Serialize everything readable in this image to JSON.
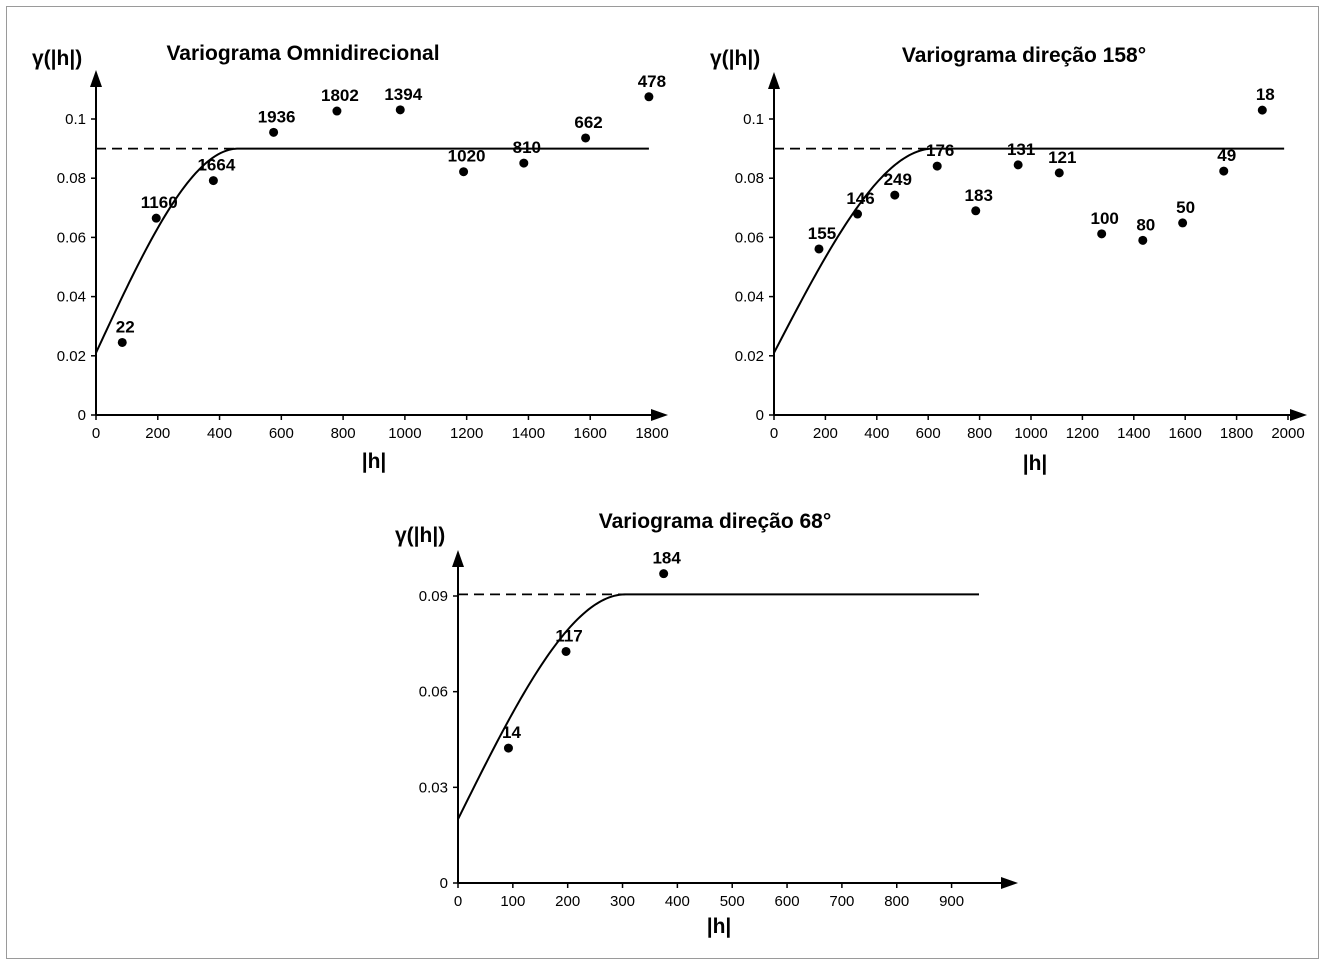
{
  "chart_data": [
    {
      "type": "scatter",
      "title": "Variograma Omnidirecional",
      "ylabel": "γ(|h|)",
      "xlabel": "|h|",
      "xlim": [
        0,
        1800
      ],
      "ylim": [
        0,
        0.1
      ],
      "xticks": [
        0,
        200,
        400,
        600,
        800,
        1000,
        1200,
        1400,
        1600,
        1800
      ],
      "xtick_labels": [
        "0",
        "200",
        "400",
        "600",
        "800",
        "1000",
        "1200",
        "1400",
        "1600",
        "1800"
      ],
      "yticks": [
        0,
        0.02,
        0.04,
        0.06,
        0.08,
        0.1
      ],
      "ytick_labels": [
        "0",
        "0.02",
        "0.04",
        "0.06",
        "0.08",
        "0.1"
      ],
      "points": [
        {
          "x": 85,
          "y": 0.0245,
          "label": "22"
        },
        {
          "x": 195,
          "y": 0.0665,
          "label": "1160"
        },
        {
          "x": 380,
          "y": 0.0792,
          "label": "1664"
        },
        {
          "x": 575,
          "y": 0.0955,
          "label": "1936"
        },
        {
          "x": 780,
          "y": 0.1027,
          "label": "1802"
        },
        {
          "x": 985,
          "y": 0.1031,
          "label": "1394"
        },
        {
          "x": 1190,
          "y": 0.0822,
          "label": "1020"
        },
        {
          "x": 1385,
          "y": 0.0851,
          "label": "810"
        },
        {
          "x": 1585,
          "y": 0.0936,
          "label": "662"
        },
        {
          "x": 1790,
          "y": 0.1075,
          "label": "478"
        }
      ],
      "model": {
        "type": "spherical",
        "nugget": 0.021,
        "sill": 0.09,
        "range": 460,
        "xmax": 1790
      },
      "sill_line_end": 460
    },
    {
      "type": "scatter",
      "title": "Variograma direção 158°",
      "ylabel": "γ(|h|)",
      "xlabel": "|h|",
      "xlim": [
        0,
        2000
      ],
      "ylim": [
        0,
        0.1
      ],
      "xticks": [
        0,
        200,
        400,
        600,
        800,
        1000,
        1200,
        1400,
        1600,
        1800,
        2000
      ],
      "xtick_labels": [
        "0",
        "200",
        "400",
        "600",
        "800",
        "1000",
        "1200",
        "1400",
        "1600",
        "1800",
        "2000"
      ],
      "yticks": [
        0,
        0.02,
        0.04,
        0.06,
        0.08,
        0.1
      ],
      "ytick_labels": [
        "0",
        "0.02",
        "0.04",
        "0.06",
        "0.08",
        "0.1"
      ],
      "points": [
        {
          "x": 175,
          "y": 0.0561,
          "label": "155"
        },
        {
          "x": 325,
          "y": 0.0679,
          "label": "146"
        },
        {
          "x": 470,
          "y": 0.0743,
          "label": "249"
        },
        {
          "x": 635,
          "y": 0.0841,
          "label": "176"
        },
        {
          "x": 785,
          "y": 0.069,
          "label": "183"
        },
        {
          "x": 950,
          "y": 0.0845,
          "label": "131"
        },
        {
          "x": 1110,
          "y": 0.0818,
          "label": "121"
        },
        {
          "x": 1275,
          "y": 0.0612,
          "label": "100"
        },
        {
          "x": 1435,
          "y": 0.059,
          "label": "80"
        },
        {
          "x": 1590,
          "y": 0.0649,
          "label": "50"
        },
        {
          "x": 1750,
          "y": 0.0824,
          "label": "49"
        },
        {
          "x": 1900,
          "y": 0.103,
          "label": "18"
        }
      ],
      "model": {
        "type": "spherical",
        "nugget": 0.021,
        "sill": 0.09,
        "range": 620,
        "xmax": 1985
      },
      "sill_line_end": 620
    },
    {
      "type": "scatter",
      "title": "Variograma direção 68°",
      "ylabel": "γ(|h|)",
      "xlabel": "|h|",
      "xlim": [
        0,
        950
      ],
      "ylim": [
        0,
        0.09
      ],
      "xticks": [
        0,
        100,
        200,
        300,
        400,
        500,
        600,
        700,
        800,
        900
      ],
      "xtick_labels": [
        "0",
        "100",
        "200",
        "300",
        "400",
        "500",
        "600",
        "700",
        "800",
        "900"
      ],
      "yticks": [
        0,
        0.03,
        0.06,
        0.09
      ],
      "ytick_labels": [
        "0",
        "0.03",
        "0.06",
        "0.09"
      ],
      "points": [
        {
          "x": 92,
          "y": 0.0423,
          "label": "14"
        },
        {
          "x": 197,
          "y": 0.0726,
          "label": "117"
        },
        {
          "x": 375,
          "y": 0.097,
          "label": "184"
        }
      ],
      "model": {
        "type": "spherical",
        "nugget": 0.02,
        "sill": 0.0905,
        "range": 305,
        "xmax": 950
      },
      "sill_line_end": 305
    }
  ]
}
